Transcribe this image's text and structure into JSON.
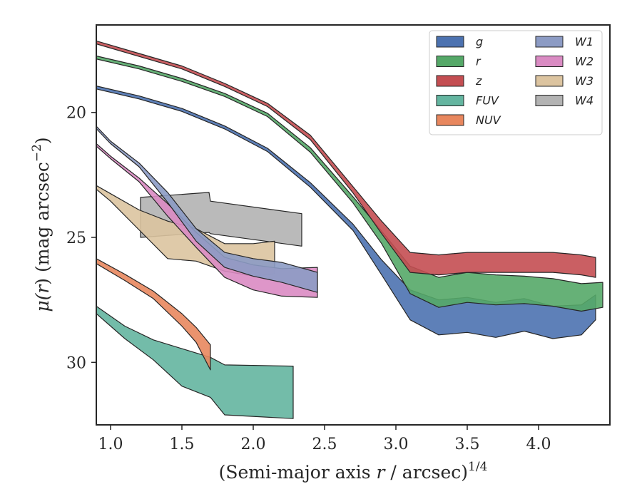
{
  "chart_data": {
    "type": "area",
    "title": "",
    "xlabel": "(Semi-major axis r / arcsec)^{1/4}",
    "xlabel_parts": {
      "pre": "(Semi-major axis ",
      "var": "r",
      "post": " / arcsec)",
      "sup": "1/4"
    },
    "ylabel": "μ(r) (mag arcsec^-2)",
    "ylabel_parts": {
      "mu": "μ(",
      "var": "r",
      "close": ")",
      "unit": " (mag arcsec",
      "sup": "−2",
      "end": ")"
    },
    "xlim": [
      0.9,
      4.5
    ],
    "ylim": [
      32.5,
      16.5
    ],
    "y_inverted": true,
    "grid": false,
    "legend_position": "top-right",
    "legend_columns": 2,
    "x_ticks": [
      "1.0",
      "1.5",
      "2.0",
      "2.5",
      "3.0",
      "3.5",
      "4.0"
    ],
    "y_ticks": [
      "20",
      "25",
      "30"
    ],
    "series": [
      {
        "name": "g",
        "color": "#4c72b0",
        "x": [
          0.9,
          1.2,
          1.5,
          1.8,
          2.1,
          2.4,
          2.7,
          2.9,
          3.1,
          3.3,
          3.5,
          3.7,
          3.9,
          4.1,
          4.3,
          4.4
        ],
        "y": [
          19.0,
          19.4,
          19.9,
          20.6,
          21.5,
          22.9,
          24.6,
          26.2,
          27.7,
          28.2,
          28.1,
          28.3,
          28.1,
          28.4,
          28.3,
          27.8
        ],
        "width": [
          0.12,
          0.12,
          0.12,
          0.12,
          0.13,
          0.18,
          0.25,
          0.6,
          1.2,
          1.4,
          1.4,
          1.4,
          1.3,
          1.3,
          1.2,
          1.0
        ]
      },
      {
        "name": "r",
        "color": "#55a868",
        "x": [
          0.9,
          1.2,
          1.5,
          1.8,
          2.1,
          2.4,
          2.7,
          2.9,
          3.1,
          3.3,
          3.5,
          3.7,
          3.9,
          4.1,
          4.3,
          4.45
        ],
        "y": [
          17.8,
          18.2,
          18.7,
          19.3,
          20.1,
          21.5,
          23.5,
          25.0,
          26.7,
          27.2,
          27.0,
          27.1,
          27.1,
          27.2,
          27.4,
          27.3
        ],
        "width": [
          0.12,
          0.12,
          0.12,
          0.12,
          0.13,
          0.18,
          0.25,
          0.5,
          1.1,
          1.2,
          1.2,
          1.2,
          1.1,
          1.1,
          1.1,
          1.0
        ]
      },
      {
        "name": "z",
        "color": "#c44e52",
        "x": [
          0.9,
          1.2,
          1.5,
          1.8,
          2.1,
          2.4,
          2.7,
          2.9,
          3.1,
          3.3,
          3.5,
          3.7,
          3.9,
          4.1,
          4.3,
          4.4
        ],
        "y": [
          17.2,
          17.7,
          18.2,
          18.9,
          19.7,
          21.0,
          23.1,
          24.6,
          26.0,
          26.1,
          26.0,
          26.0,
          26.0,
          26.0,
          26.1,
          26.2
        ],
        "width": [
          0.12,
          0.12,
          0.12,
          0.12,
          0.13,
          0.18,
          0.25,
          0.5,
          0.8,
          0.8,
          0.8,
          0.8,
          0.8,
          0.8,
          0.8,
          0.8
        ]
      },
      {
        "name": "FUV",
        "color": "#64b5a0",
        "x": [
          0.9,
          1.1,
          1.3,
          1.5,
          1.7,
          1.8,
          2.28
        ],
        "y": [
          27.9,
          28.8,
          29.5,
          30.2,
          30.6,
          31.1,
          31.2
        ],
        "width": [
          0.3,
          0.5,
          0.8,
          1.5,
          1.6,
          2.0,
          2.1
        ]
      },
      {
        "name": "NUV",
        "color": "#e8875e",
        "x": [
          0.9,
          1.1,
          1.3,
          1.5,
          1.6,
          1.7
        ],
        "y": [
          25.95,
          26.6,
          27.3,
          28.3,
          28.9,
          29.8
        ],
        "width": [
          0.2,
          0.25,
          0.3,
          0.5,
          0.6,
          1.0
        ]
      },
      {
        "name": "W1",
        "color": "#8c9bc4",
        "x": [
          0.9,
          1.0,
          1.2,
          1.4,
          1.6,
          1.8,
          2.0,
          2.2,
          2.45
        ],
        "y": [
          20.6,
          21.2,
          22.1,
          23.4,
          24.9,
          25.9,
          26.2,
          26.4,
          26.8
        ],
        "width": [
          0.1,
          0.1,
          0.15,
          0.4,
          0.5,
          0.6,
          0.7,
          0.8,
          0.8
        ]
      },
      {
        "name": "W2",
        "color": "#da8bc3",
        "x": [
          0.9,
          1.0,
          1.2,
          1.4,
          1.6,
          1.8,
          2.0,
          2.2,
          2.45
        ],
        "y": [
          21.3,
          21.8,
          22.7,
          23.9,
          25.1,
          26.2,
          26.6,
          26.8,
          26.8
        ],
        "width": [
          0.1,
          0.1,
          0.15,
          0.5,
          0.6,
          0.8,
          1.0,
          1.1,
          1.2
        ]
      },
      {
        "name": "W3",
        "color": "#dcc4a0",
        "x": [
          0.9,
          1.0,
          1.2,
          1.4,
          1.6,
          1.8,
          2.0,
          2.15
        ],
        "y": [
          23.0,
          23.4,
          24.3,
          25.1,
          25.3,
          25.8,
          25.9,
          25.8
        ],
        "width": [
          0.15,
          0.3,
          0.8,
          1.5,
          1.3,
          1.1,
          1.3,
          1.3
        ]
      },
      {
        "name": "W4",
        "color": "#b3b3b3",
        "x": [
          1.21,
          1.69,
          1.7,
          2.34
        ],
        "y": [
          24.2,
          24.0,
          24.2,
          24.7
        ],
        "width": [
          1.6,
          1.6,
          1.3,
          1.3
        ]
      }
    ]
  }
}
